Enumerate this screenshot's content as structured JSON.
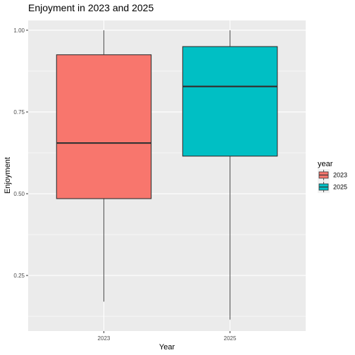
{
  "chart_data": {
    "type": "boxplot",
    "title": "Enjoyment in 2023 and 2025",
    "xlabel": "Year",
    "ylabel": "Enjoyment",
    "categories": [
      "2023",
      "2025"
    ],
    "boxes": [
      {
        "category": "2023",
        "min": 0.17,
        "q1": 0.485,
        "median": 0.655,
        "q3": 0.925,
        "max": 1.0
      },
      {
        "category": "2025",
        "min": 0.115,
        "q1": 0.615,
        "median": 0.828,
        "q3": 0.95,
        "max": 1.0
      }
    ],
    "yticks": [
      0.25,
      0.5,
      0.75,
      1.0
    ],
    "ytick_labels": [
      "0.25",
      "0.50",
      "0.75",
      "1.00"
    ],
    "ylim": [
      0.08,
      1.03
    ],
    "grid": true,
    "legend": {
      "title": "year",
      "placement": "right",
      "entries": [
        {
          "label": "2023",
          "color": "#F8766D"
        },
        {
          "label": "2025",
          "color": "#00BFC4"
        }
      ]
    },
    "colors": {
      "2023": "#F8766D",
      "2025": "#00BFC4",
      "panel_background": "#EBEBEB",
      "grid": "#FFFFFF",
      "outline": "#333333",
      "whisker": "#595959"
    }
  }
}
